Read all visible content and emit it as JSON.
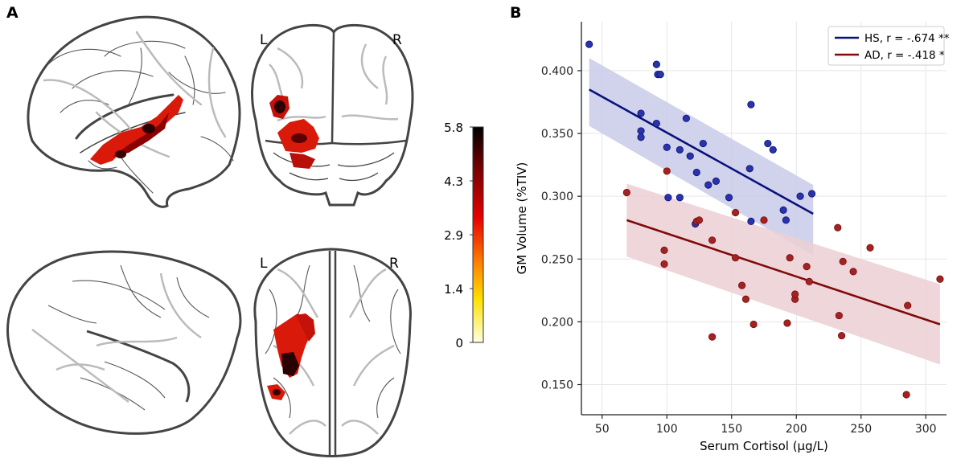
{
  "panel_labels": {
    "a": "A",
    "b": "B"
  },
  "brain": {
    "hemisphere_left": "L",
    "hemisphere_right": "R"
  },
  "colorbar": {
    "max": 5.8,
    "ticks": [
      "5.8",
      "4.3",
      "2.9",
      "1.4",
      "0"
    ],
    "colors": [
      "#000000",
      "#7a0000",
      "#e60000",
      "#ff7a00",
      "#ffe100",
      "#ffffe0"
    ]
  },
  "colors": {
    "hs": "#0a127a",
    "hs_point": "#2a33a8",
    "ad": "#7f0a0a",
    "ad_point": "#a02424",
    "hs_band": "#c8cbe8",
    "ad_band": "#eccfd3",
    "grid": "#e6e6e6"
  },
  "chart_data": {
    "type": "scatter",
    "xlabel": "Serum Cortisol (µg/L)",
    "ylabel": "GM Volume (%TIV)",
    "xlim": [
      34,
      316
    ],
    "ylim": [
      0.126,
      0.439
    ],
    "xticks": [
      50,
      100,
      150,
      200,
      250,
      300
    ],
    "yticks": [
      0.15,
      0.2,
      0.25,
      0.3,
      0.35,
      0.4
    ],
    "ytick_labels": [
      "0.150",
      "0.200",
      "0.250",
      "0.300",
      "0.350",
      "0.400"
    ],
    "legend_position": "top-right",
    "series": [
      {
        "name": "HS, r = -.674 **",
        "key": "hs",
        "points": [
          [
            40,
            0.421
          ],
          [
            92,
            0.405
          ],
          [
            93,
            0.397
          ],
          [
            95,
            0.397
          ],
          [
            80,
            0.366
          ],
          [
            80,
            0.352
          ],
          [
            80,
            0.347
          ],
          [
            92,
            0.358
          ],
          [
            100,
            0.339
          ],
          [
            110,
            0.337
          ],
          [
            118,
            0.332
          ],
          [
            115,
            0.362
          ],
          [
            128,
            0.342
          ],
          [
            123,
            0.319
          ],
          [
            165,
            0.373
          ],
          [
            178,
            0.342
          ],
          [
            182,
            0.337
          ],
          [
            164,
            0.322
          ],
          [
            101,
            0.299
          ],
          [
            110,
            0.299
          ],
          [
            132,
            0.309
          ],
          [
            138,
            0.312
          ],
          [
            148,
            0.299
          ],
          [
            190,
            0.289
          ],
          [
            192,
            0.281
          ],
          [
            203,
            0.3
          ],
          [
            212,
            0.302
          ],
          [
            165,
            0.28
          ],
          [
            122,
            0.278
          ]
        ],
        "fit": {
          "x": [
            40,
            213
          ],
          "y": [
            0.385,
            0.286
          ]
        },
        "band": {
          "x": [
            40,
            213
          ],
          "upper": [
            0.41,
            0.309
          ],
          "lower": [
            0.356,
            0.253
          ]
        }
      },
      {
        "name": "AD, r = -.418 *",
        "key": "ad",
        "points": [
          [
            69,
            0.303
          ],
          [
            100,
            0.32
          ],
          [
            98,
            0.257
          ],
          [
            98,
            0.246
          ],
          [
            123,
            0.28
          ],
          [
            125,
            0.281
          ],
          [
            135,
            0.265
          ],
          [
            153,
            0.251
          ],
          [
            153,
            0.287
          ],
          [
            175,
            0.281
          ],
          [
            158,
            0.229
          ],
          [
            161,
            0.218
          ],
          [
            167,
            0.198
          ],
          [
            135,
            0.188
          ],
          [
            195,
            0.251
          ],
          [
            199,
            0.218
          ],
          [
            199,
            0.222
          ],
          [
            208,
            0.244
          ],
          [
            210,
            0.232
          ],
          [
            193,
            0.199
          ],
          [
            232,
            0.275
          ],
          [
            236,
            0.248
          ],
          [
            257,
            0.259
          ],
          [
            244,
            0.24
          ],
          [
            235,
            0.189
          ],
          [
            233,
            0.205
          ],
          [
            286,
            0.213
          ],
          [
            285,
            0.142
          ],
          [
            311,
            0.234
          ]
        ],
        "fit": {
          "x": [
            69,
            311
          ],
          "y": [
            0.281,
            0.198
          ]
        },
        "band": {
          "x": [
            69,
            311
          ],
          "upper": [
            0.31,
            0.23
          ],
          "lower": [
            0.252,
            0.166
          ]
        }
      }
    ]
  }
}
